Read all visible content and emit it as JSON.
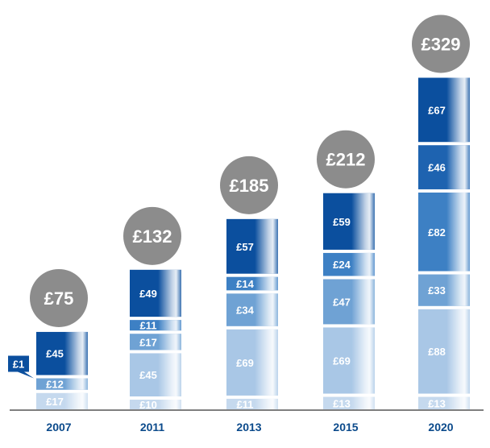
{
  "chart_data": {
    "type": "bar",
    "stacked": true,
    "currency": "£",
    "categories": [
      "2007",
      "2011",
      "2013",
      "2015",
      "2020"
    ],
    "series": [
      {
        "values": [
          17,
          10,
          11,
          13,
          13
        ],
        "color": "#c5d9ee"
      },
      {
        "values": [
          0,
          45,
          69,
          69,
          88
        ],
        "color": "#a9c7e6"
      },
      {
        "values": [
          12,
          17,
          34,
          47,
          33
        ],
        "color": "#6fa2d4"
      },
      {
        "values": [
          0,
          11,
          14,
          24,
          82
        ],
        "color": "#3d80c4"
      },
      {
        "values": [
          1,
          0,
          0,
          0,
          46
        ],
        "color": "#1e63b0"
      },
      {
        "values": [
          45,
          49,
          57,
          59,
          67
        ],
        "color": "#0b4f9e"
      }
    ],
    "segment_labels": [
      [
        "£17",
        "",
        "£12",
        "",
        "£1",
        "£45"
      ],
      [
        "£10",
        "£45",
        "£17",
        "£11",
        "",
        "£49"
      ],
      [
        "£11",
        "£69",
        "£34",
        "£14",
        "",
        "£57"
      ],
      [
        "£13",
        "£69",
        "£47",
        "£24",
        "",
        "£59"
      ],
      [
        "£13",
        "£88",
        "£33",
        "£82",
        "£46",
        "£67"
      ]
    ],
    "totals": [
      "£75",
      "£132",
      "£185",
      "£212",
      "£329"
    ],
    "total_badge_color": "#8c8c8c",
    "axis_color": "#555555",
    "year_label_color": "#0b4a8b"
  }
}
